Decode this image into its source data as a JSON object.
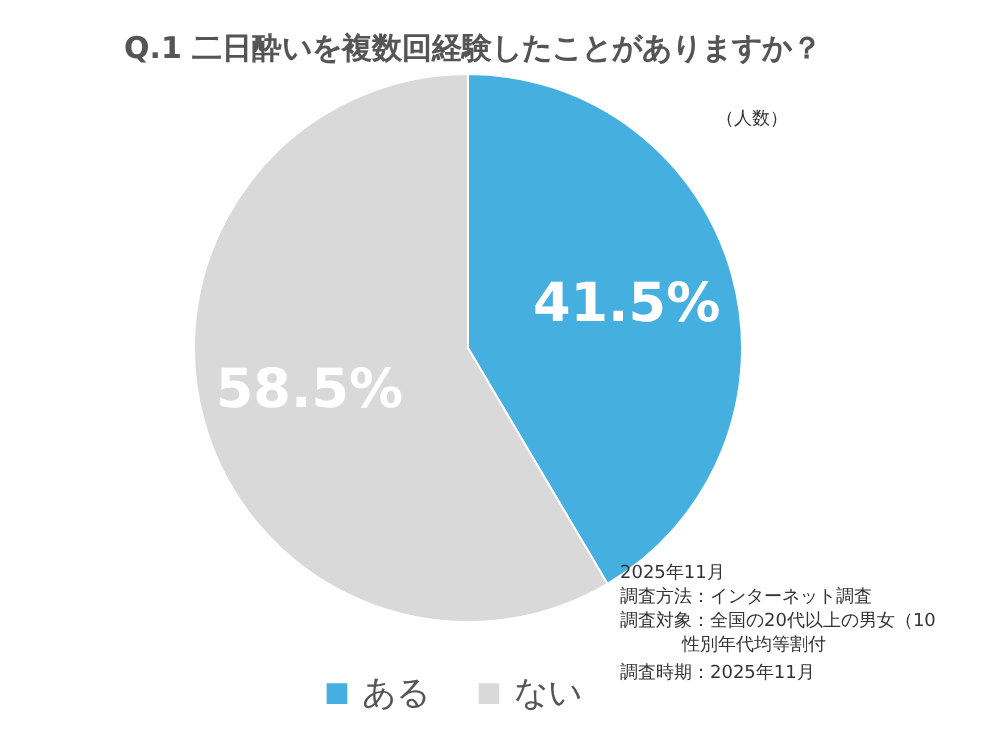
{
  "chart_data": {
    "type": "pie",
    "title": "Q.1 二日酔いを複数回経験したことがありますか？",
    "categories": [
      "ある",
      "ない"
    ],
    "values": [
      41.5,
      58.5
    ],
    "colors": [
      "#45b0e0",
      "#d9d9d9"
    ],
    "value_labels": [
      "41.5%",
      "58.5%"
    ],
    "legend": "bottom",
    "annotations": [
      "（人数）",
      "2025年11月",
      "調査方法：インターネット調査",
      "調査対象：全国の20代以上の男女（10",
      "性別年代均等割付",
      "調査時期：2025年11月"
    ]
  }
}
